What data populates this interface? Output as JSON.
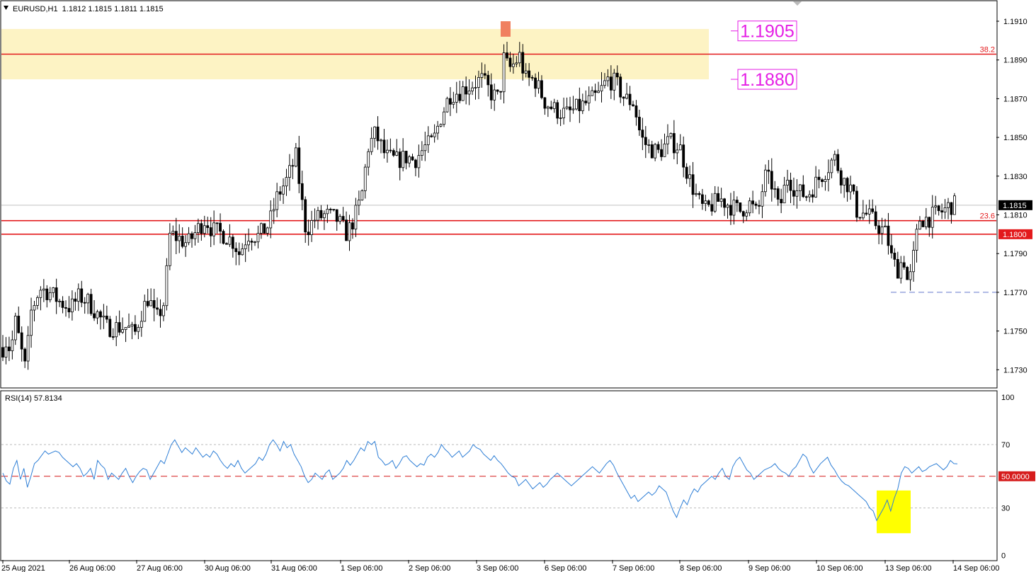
{
  "header": {
    "menu_icon": "triangle-down-icon",
    "symbol_line": "EURUSD,H1  1.1812 1.1815 1.1811 1.1815"
  },
  "colors": {
    "bull_body": "#ffffff",
    "bear_body": "#000000",
    "wick": "#000000",
    "support_line": "#e31a1c",
    "zone_fill": "#fdf3c4",
    "annotation": "#e51ee5",
    "rsi_line": "#2f7fd6",
    "rsi_mid_line": "#d61c1c",
    "rsi_highlight": "#ffff00",
    "marker_fill": "#f08060",
    "dashed_low": "#6677cc"
  },
  "chart_data": [
    {
      "type": "candlestick",
      "timeframe": "H1",
      "symbol": "EURUSD",
      "ylim": [
        1.1722,
        1.192
      ],
      "y_ticks": [
        "1.1910",
        "1.1890",
        "1.1870",
        "1.1850",
        "1.1830",
        "1.1810",
        "1.1790",
        "1.1770",
        "1.1750",
        "1.1730"
      ],
      "y_tick_values": [
        1.191,
        1.189,
        1.187,
        1.185,
        1.183,
        1.181,
        1.179,
        1.177,
        1.175,
        1.173
      ],
      "x_ticks": [
        "25 Aug 2021",
        "26 Aug 06:00",
        "27 Aug 06:00",
        "30 Aug 06:00",
        "31 Aug 06:00",
        "1 Sep 06:00",
        "2 Sep 06:00",
        "3 Sep 06:00",
        "6 Sep 06:00",
        "7 Sep 06:00",
        "8 Sep 06:00",
        "9 Sep 06:00",
        "10 Sep 06:00",
        "13 Sep 06:00",
        "14 Sep 06:00"
      ],
      "price_path": [
        [
          0,
          1.1738
        ],
        [
          8,
          1.1745
        ],
        [
          15,
          1.174
        ],
        [
          22,
          1.1755
        ],
        [
          30,
          1.174
        ],
        [
          36,
          1.173
        ],
        [
          44,
          1.176
        ],
        [
          56,
          1.1772
        ],
        [
          70,
          1.177
        ],
        [
          85,
          1.1765
        ],
        [
          100,
          1.1762
        ],
        [
          112,
          1.1768
        ],
        [
          125,
          1.1765
        ],
        [
          135,
          1.176
        ],
        [
          150,
          1.1752
        ],
        [
          165,
          1.1752
        ],
        [
          180,
          1.1752
        ],
        [
          190,
          1.1748
        ],
        [
          198,
          1.1758
        ],
        [
          210,
          1.1768
        ],
        [
          220,
          1.1755
        ],
        [
          232,
          1.1765
        ],
        [
          240,
          1.18
        ],
        [
          252,
          1.1798
        ],
        [
          265,
          1.1795
        ],
        [
          278,
          1.1802
        ],
        [
          290,
          1.1808
        ],
        [
          300,
          1.1802
        ],
        [
          315,
          1.18
        ],
        [
          330,
          1.1796
        ],
        [
          338,
          1.179
        ],
        [
          350,
          1.18
        ],
        [
          365,
          1.1799
        ],
        [
          380,
          1.1805
        ],
        [
          392,
          1.182
        ],
        [
          405,
          1.1828
        ],
        [
          418,
          1.184
        ],
        [
          425,
          1.182
        ],
        [
          432,
          1.1802
        ],
        [
          445,
          1.1808
        ],
        [
          460,
          1.181
        ],
        [
          475,
          1.1808
        ],
        [
          490,
          1.18
        ],
        [
          500,
          1.1808
        ],
        [
          510,
          1.1818
        ],
        [
          520,
          1.1845
        ],
        [
          530,
          1.1852
        ],
        [
          545,
          1.184
        ],
        [
          560,
          1.1838
        ],
        [
          575,
          1.184
        ],
        [
          585,
          1.1838
        ],
        [
          600,
          1.1845
        ],
        [
          612,
          1.1848
        ],
        [
          622,
          1.186
        ],
        [
          635,
          1.1872
        ],
        [
          650,
          1.1874
        ],
        [
          665,
          1.1877
        ],
        [
          680,
          1.188
        ],
        [
          695,
          1.1872
        ],
        [
          705,
          1.187
        ],
        [
          712,
          1.1892
        ],
        [
          718,
          1.1885
        ],
        [
          726,
          1.1888
        ],
        [
          734,
          1.1892
        ],
        [
          742,
          1.188
        ],
        [
          755,
          1.188
        ],
        [
          770,
          1.1868
        ],
        [
          785,
          1.1864
        ],
        [
          800,
          1.1862
        ],
        [
          815,
          1.1865
        ],
        [
          830,
          1.1868
        ],
        [
          845,
          1.1872
        ],
        [
          858,
          1.188
        ],
        [
          870,
          1.1878
        ],
        [
          882,
          1.187
        ],
        [
          895,
          1.1868
        ],
        [
          905,
          1.185
        ],
        [
          915,
          1.1845
        ],
        [
          930,
          1.1842
        ],
        [
          945,
          1.1848
        ],
        [
          960,
          1.1845
        ],
        [
          972,
          1.183
        ],
        [
          985,
          1.1818
        ],
        [
          995,
          1.1812
        ],
        [
          1005,
          1.1815
        ],
        [
          1018,
          1.1818
        ],
        [
          1030,
          1.1815
        ],
        [
          1045,
          1.1812
        ],
        [
          1058,
          1.1816
        ],
        [
          1070,
          1.181
        ],
        [
          1080,
          1.183
        ],
        [
          1092,
          1.1825
        ],
        [
          1100,
          1.1812
        ],
        [
          1112,
          1.183
        ],
        [
          1125,
          1.1822
        ],
        [
          1140,
          1.182
        ],
        [
          1155,
          1.1828
        ],
        [
          1170,
          1.1835
        ],
        [
          1178,
          1.184
        ],
        [
          1190,
          1.1828
        ],
        [
          1200,
          1.1825
        ],
        [
          1210,
          1.1812
        ],
        [
          1225,
          1.181
        ],
        [
          1238,
          1.1805
        ],
        [
          1252,
          1.18
        ],
        [
          1260,
          1.1786
        ],
        [
          1268,
          1.1782
        ],
        [
          1276,
          1.1788
        ],
        [
          1283,
          1.1772
        ],
        [
          1290,
          1.1788
        ],
        [
          1298,
          1.1808
        ],
        [
          1310,
          1.1808
        ],
        [
          1320,
          1.181
        ],
        [
          1332,
          1.1812
        ],
        [
          1342,
          1.1815
        ],
        [
          1352,
          1.1815
        ]
      ],
      "levels": [
        {
          "label": "38.2",
          "price": 1.1893
        },
        {
          "label": "23.6",
          "price": 1.1807
        },
        {
          "label": "1.1800",
          "price": 1.18
        }
      ],
      "current_price_label": "1.1815",
      "current_price": 1.1815,
      "resistance_zone": [
        1.188,
        1.1906
      ],
      "annotations": [
        "1.1905",
        "1.1880"
      ],
      "annotation_prices": [
        1.1905,
        1.188
      ],
      "recent_low": 1.177
    },
    {
      "type": "line",
      "title": "RSI(14) 57.8134",
      "ylim": [
        0,
        100
      ],
      "y_ticks": [
        "100",
        "70",
        "50.0000",
        "30",
        "0"
      ],
      "y_tick_values": [
        100,
        70,
        50,
        30,
        0
      ],
      "levels": [
        70,
        50,
        30
      ],
      "series": [
        {
          "values": [
            52,
            47,
            45,
            55,
            60,
            48,
            55,
            43,
            50,
            58,
            60,
            63,
            66,
            64,
            65,
            66,
            65,
            62,
            60,
            58,
            56,
            58,
            55,
            50,
            52,
            55,
            48,
            60,
            57,
            55,
            48,
            52,
            50,
            48,
            52,
            55,
            50,
            46,
            50,
            53,
            55,
            54,
            48,
            52,
            56,
            60,
            58,
            64,
            70,
            73,
            69,
            65,
            68,
            66,
            64,
            68,
            65,
            62,
            64,
            62,
            66,
            64,
            60,
            57,
            55,
            58,
            56,
            60,
            55,
            52,
            54,
            56,
            58,
            62,
            60,
            64,
            70,
            73,
            70,
            66,
            72,
            68,
            70,
            64,
            60,
            56,
            50,
            46,
            48,
            52,
            50,
            48,
            52,
            54,
            48,
            50,
            52,
            55,
            60,
            57,
            60,
            64,
            68,
            66,
            72,
            70,
            72,
            62,
            60,
            57,
            58,
            60,
            55,
            58,
            62,
            63,
            60,
            58,
            56,
            58,
            57,
            62,
            64,
            62,
            65,
            70,
            67,
            65,
            62,
            64,
            66,
            62,
            64,
            66,
            70,
            68,
            67,
            64,
            62,
            60,
            63,
            60,
            58,
            55,
            52,
            50,
            49,
            44,
            46,
            48,
            45,
            42,
            44,
            46,
            43,
            45,
            48,
            50,
            52,
            50,
            48,
            46,
            44,
            46,
            48,
            50,
            52,
            54,
            56,
            54,
            52,
            55,
            58,
            60,
            57,
            52,
            48,
            44,
            40,
            36,
            38,
            34,
            36,
            38,
            40,
            38,
            40,
            44,
            42,
            40,
            34,
            28,
            24,
            30,
            35,
            32,
            38,
            42,
            40,
            44,
            46,
            48,
            50,
            48,
            52,
            55,
            50,
            48,
            56,
            60,
            62,
            58,
            54,
            52,
            48,
            50,
            52,
            54,
            55,
            56,
            58,
            55,
            53,
            52,
            50,
            54,
            56,
            60,
            64,
            62,
            56,
            52,
            55,
            58,
            60,
            62,
            57,
            54,
            50,
            47,
            45,
            44,
            42,
            40,
            38,
            36,
            34,
            30,
            28,
            22,
            26,
            30,
            35,
            28,
            36,
            42,
            52,
            56,
            55,
            52,
            54,
            56,
            53,
            54,
            56,
            57,
            58,
            56,
            54,
            56,
            60,
            58,
            57.8134
          ]
        }
      ]
    }
  ]
}
